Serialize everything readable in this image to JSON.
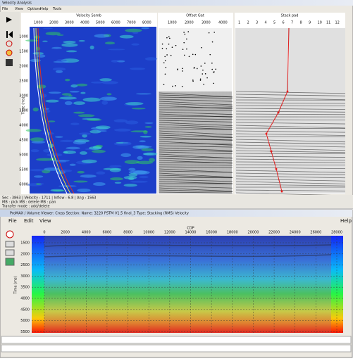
{
  "top_window": {
    "title": "Velocity Analysis",
    "menu": [
      "File",
      "View",
      "Options",
      "Help",
      "Tools"
    ],
    "panels": [
      "Velocity Semb",
      "Offset Gat",
      "Stack pad"
    ],
    "semblance_ticks": [
      "1000",
      "2000",
      "3000",
      "4000",
      "5000",
      "6000",
      "7000",
      "8000"
    ],
    "gather_ticks": [
      "1000",
      "2000",
      "3000",
      "4000"
    ],
    "stack_columns": [
      "1",
      "2",
      "3",
      "4",
      "5",
      "6",
      "7",
      "8",
      "9",
      "10",
      "11",
      "12"
    ],
    "y_label": "Time (ms)",
    "y_ticks": [
      "1000",
      "1500",
      "2000",
      "2500",
      "3000",
      "3500",
      "4000",
      "4500",
      "5000",
      "5500",
      "6000"
    ],
    "status": [
      "Sec : 3863 | Velocity : 1711 | Inflow : 6.8 | Ang : 1563",
      "MB : pick MB : delete MB : pan",
      "Transfer mode : add/delete"
    ]
  },
  "bottom_window": {
    "title": "ProMAX / Volume Viewer: Cross Section: Name: 3220 PSTM V1.5 final_3  Type: Stacking (RMS) Velocity",
    "menu": [
      "File",
      "Edit",
      "View"
    ],
    "help": "Help",
    "x_label": "CDP",
    "x_ticks": [
      "0",
      "2000",
      "4000",
      "6000",
      "8000",
      "10000",
      "12000",
      "14000",
      "16000",
      "18000",
      "20000",
      "22000",
      "24000",
      "26000",
      "28000"
    ],
    "y_label": "Time (ms)",
    "y_ticks": [
      "1500",
      "2000",
      "2500",
      "3000",
      "3500",
      "4000",
      "4500",
      "5000",
      "5500"
    ]
  }
}
